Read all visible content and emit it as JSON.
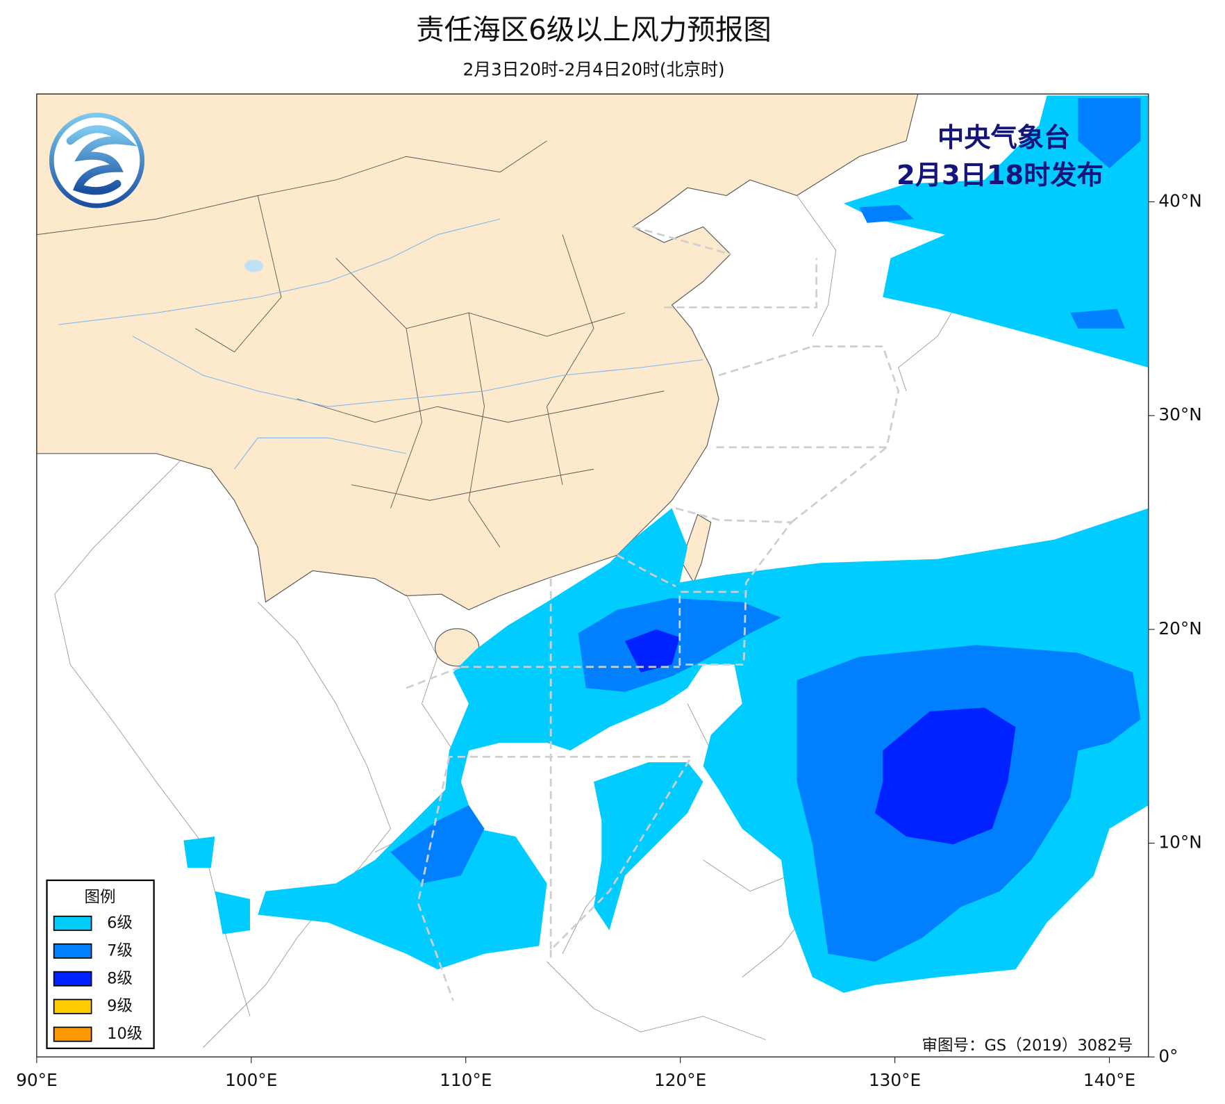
{
  "header": {
    "title": "责任海区6级以上风力预报图",
    "subtitle": "2月3日20时-2月4日20时(北京时)"
  },
  "issuer": {
    "name": "中央气象台",
    "time": "2月3日18时发布"
  },
  "legend": {
    "title": "图例",
    "items": [
      {
        "label": "6级",
        "color": "#00ccff"
      },
      {
        "label": "7级",
        "color": "#0080ff"
      },
      {
        "label": "8级",
        "color": "#0022ff"
      },
      {
        "label": "9级",
        "color": "#ffcc00"
      },
      {
        "label": "10级",
        "color": "#ff9900"
      }
    ]
  },
  "lon_ticks": [
    {
      "value": 90,
      "label": "90°E"
    },
    {
      "value": 100,
      "label": "100°E"
    },
    {
      "value": 110,
      "label": "110°E"
    },
    {
      "value": 120,
      "label": "120°E"
    },
    {
      "value": 130,
      "label": "130°E"
    },
    {
      "value": 140,
      "label": "140°E"
    }
  ],
  "lat_ticks": [
    {
      "value": 0,
      "label": "0°"
    },
    {
      "value": 10,
      "label": "10°N"
    },
    {
      "value": 20,
      "label": "20°N"
    },
    {
      "value": 30,
      "label": "30°N"
    },
    {
      "value": 40,
      "label": "40°N"
    }
  ],
  "approval": "审图号：GS（2019）3082号"
}
